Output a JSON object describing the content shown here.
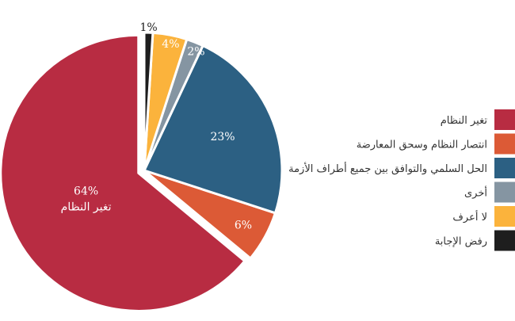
{
  "chart_data": {
    "type": "pie",
    "title": "",
    "slices": [
      {
        "label": "تغير النظام",
        "value": 64,
        "display": "64%",
        "color": "#b82c42"
      },
      {
        "label": "انتصار النظام  وسحق المعارضة",
        "value": 6,
        "display": "6%",
        "color": "#dc5a36"
      },
      {
        "label": "الحل السلمي والتوافق بين جميع أطراف الأزمة",
        "value": 23,
        "display": "23%",
        "color": "#2c6083"
      },
      {
        "label": "أخرى",
        "value": 2,
        "display": "2%",
        "color": "#8595a2"
      },
      {
        "label": "لا أعرف",
        "value": 4,
        "display": "4%",
        "color": "#fbb33c"
      },
      {
        "label": "رفض الإجابة",
        "value": 1,
        "display": "1%",
        "color": "#1e1e1e"
      }
    ],
    "direction": "counterclockwise",
    "exploded_slice": "تغير النظام",
    "legend_position": "right"
  }
}
